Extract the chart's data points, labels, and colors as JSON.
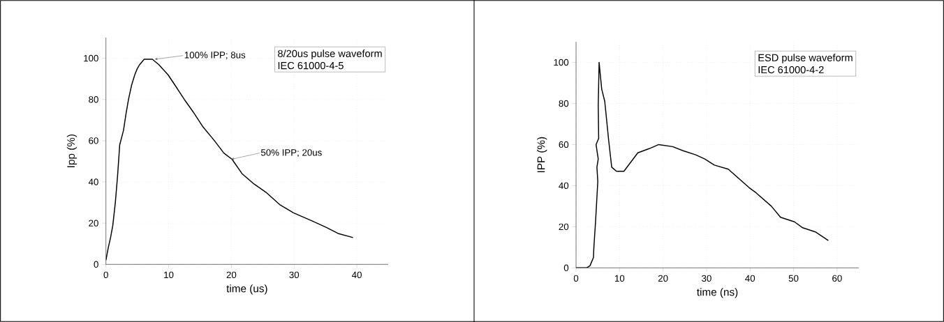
{
  "chart_data": [
    {
      "type": "line",
      "xlabel": "time (us)",
      "ylabel": "Ipp (%)",
      "xlim": [
        0,
        45
      ],
      "ylim": [
        0,
        110
      ],
      "xticks": [
        0,
        10,
        20,
        30,
        40
      ],
      "yticks": [
        0,
        20,
        40,
        60,
        80,
        100
      ],
      "grid": true,
      "x": [
        0,
        0.37,
        0.74,
        1.1,
        1.5,
        1.86,
        2.2,
        2.8,
        3.2,
        3.6,
        4.1,
        4.6,
        5.0,
        5.4,
        6.1,
        7.4,
        8.4,
        9.9,
        11,
        12.5,
        13.9,
        15.4,
        17.3,
        18.8,
        20.1,
        21.7,
        23.6,
        25.5,
        27.7,
        29.9,
        32.9,
        35.1,
        37,
        39.4
      ],
      "series": [
        {
          "color": "#000000",
          "values": [
            2,
            8,
            13,
            19,
            30,
            43,
            58,
            65,
            73,
            80,
            87,
            92,
            95,
            97,
            99.5,
            99.5,
            97,
            92,
            87,
            80,
            74,
            67,
            60,
            54,
            51,
            44,
            39,
            35,
            29,
            25,
            21,
            18,
            15,
            13
          ]
        }
      ],
      "annotations": [
        {
          "text": "100% IPP; 8us",
          "x": 7.8,
          "y": 99.5
        },
        {
          "text": "50% IPP; 20us",
          "x": 20,
          "y": 51
        },
        "8/20us pulse waveform",
        "IEC 61000-4-5"
      ]
    },
    {
      "type": "line",
      "xlabel": "time (ns)",
      "ylabel": "IPP (%)",
      "xlim": [
        0,
        65
      ],
      "ylim": [
        0,
        110
      ],
      "xticks": [
        0,
        10,
        20,
        30,
        40,
        50,
        60
      ],
      "yticks": [
        0,
        20,
        40,
        60,
        80,
        100
      ],
      "grid": true,
      "x": [
        0,
        2.4,
        3.2,
        4.0,
        4.1,
        4.5,
        5.0,
        4.8,
        5.1,
        4.6,
        5.2,
        5.1,
        5.3,
        5.9,
        6.6,
        7.5,
        8.2,
        9.3,
        11.0,
        14.2,
        16.8,
        19.0,
        22.2,
        24.6,
        27.5,
        29.6,
        31.8,
        35,
        36.6,
        39.8,
        41.4,
        44.9,
        47,
        50.2,
        52.1,
        55,
        58
      ],
      "series": [
        {
          "color": "#000000",
          "values": [
            0,
            0,
            1,
            5,
            10,
            23,
            42,
            49,
            53,
            60,
            63,
            79,
            100,
            87,
            81,
            62,
            49,
            47,
            47,
            56,
            58,
            60,
            59,
            57,
            55,
            53,
            50,
            48,
            45,
            39,
            36.5,
            30,
            24.6,
            22.4,
            19.5,
            17.5,
            13.3
          ]
        }
      ],
      "annotations": [
        "ESD pulse waveform",
        "IEC 61000-4-2"
      ]
    }
  ]
}
